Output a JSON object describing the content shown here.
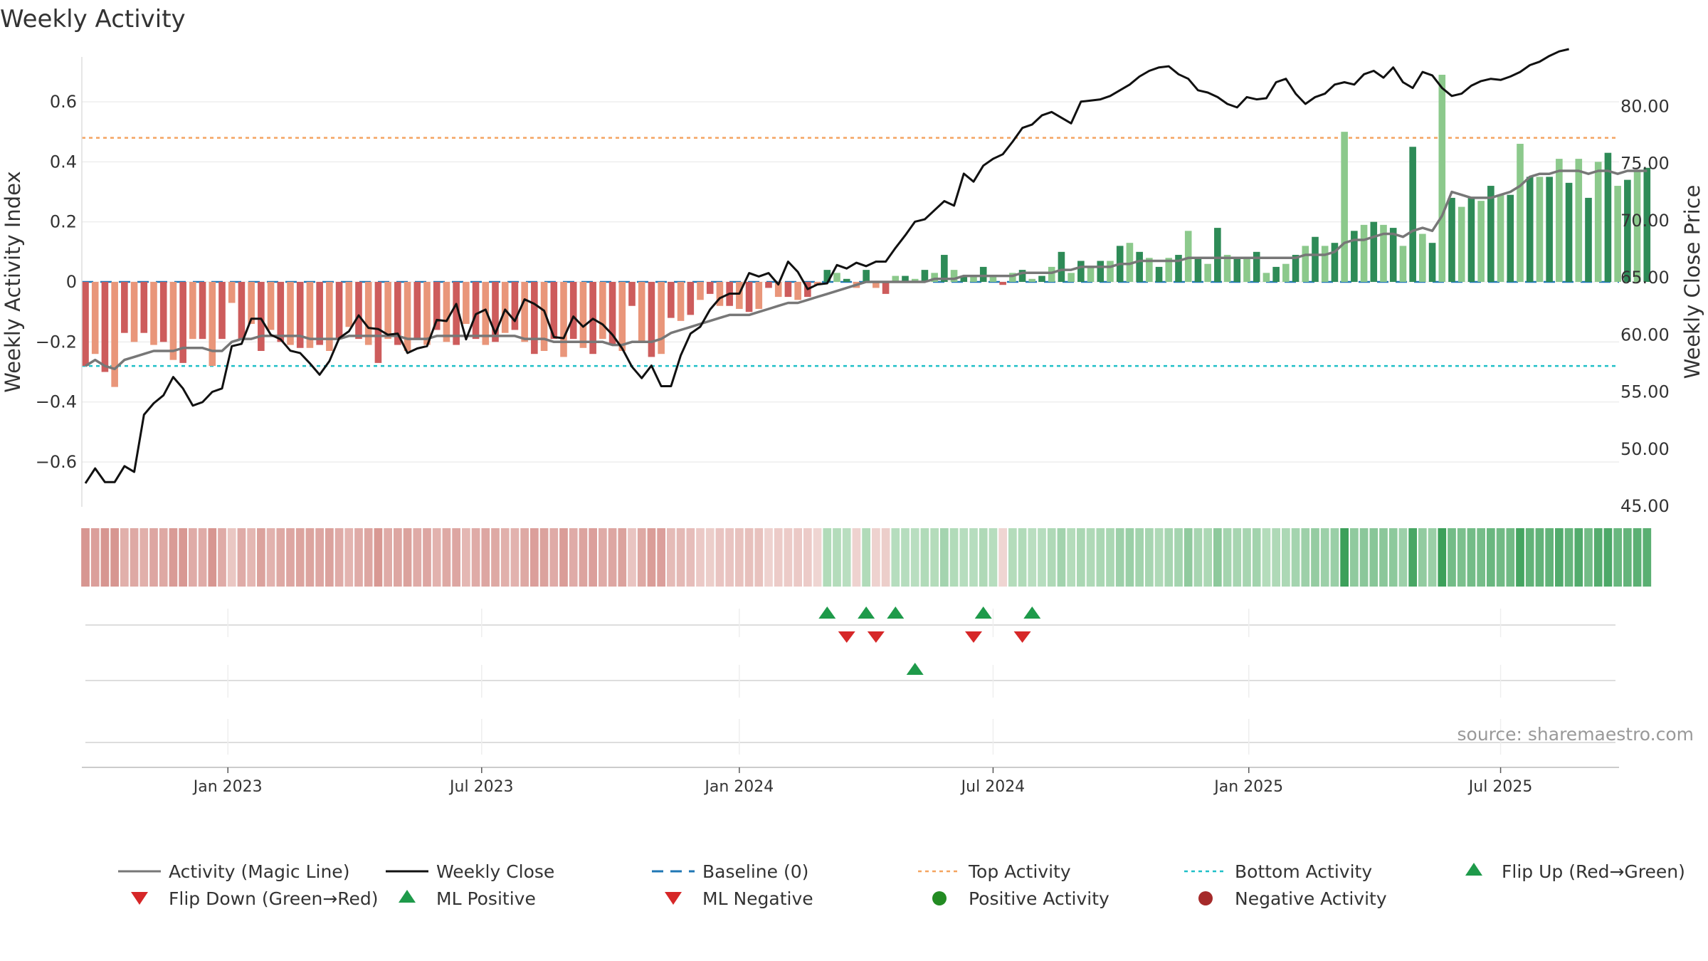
{
  "colors": {
    "pos_dark": "#2e8b57",
    "pos_light": "#8cc98c",
    "neg_dark": "#cd5c5c",
    "neg_light": "#e9967a",
    "magic": "#777777",
    "close": "#111111",
    "baseline": "#1f77b4",
    "top": "#f4a460",
    "bottom": "#20c0c8",
    "flip_up": "#1e9a4a",
    "flip_down": "#d62728",
    "pos_dot": "#228b22",
    "neg_dot": "#a52a2a"
  },
  "chart_data": {
    "type": "bar",
    "title": "Weekly Activity",
    "ylabel_left": "Weekly Activity Index",
    "ylabel_right": "Weekly Close Price",
    "ylim_left": [
      -0.75,
      0.75
    ],
    "ylim_right": [
      45,
      85
    ],
    "yticks_left": [
      -0.6,
      -0.4,
      -0.2,
      0,
      0.2,
      0.4,
      0.6
    ],
    "yticks_left_labels": [
      "−0.6",
      "−0.4",
      "−0.2",
      "0",
      "0.2",
      "0.4",
      "0.6"
    ],
    "yticks_right": [
      45,
      50,
      55,
      60,
      65,
      70,
      75,
      80
    ],
    "yticks_right_labels": [
      "45.00",
      "50.00",
      "55.00",
      "60.00",
      "65.00",
      "70.00",
      "75.00",
      "80.00"
    ],
    "xrange_weeks": [
      0,
      157
    ],
    "xticks": [
      {
        "week": 14.6,
        "label": "Jan 2023"
      },
      {
        "week": 40.6,
        "label": "Jul 2023"
      },
      {
        "week": 67,
        "label": "Jan 2024"
      },
      {
        "week": 93,
        "label": "Jul 2024"
      },
      {
        "week": 119.2,
        "label": "Jan 2025"
      },
      {
        "week": 145,
        "label": "Jul 2025"
      }
    ],
    "top_activity": 0.48,
    "bottom_activity": -0.28,
    "baseline": 0,
    "activity": [
      -0.28,
      -0.24,
      -0.3,
      -0.35,
      -0.17,
      -0.2,
      -0.17,
      -0.21,
      -0.2,
      -0.26,
      -0.27,
      -0.19,
      -0.19,
      -0.28,
      -0.19,
      -0.07,
      -0.19,
      -0.14,
      -0.23,
      -0.16,
      -0.2,
      -0.21,
      -0.22,
      -0.22,
      -0.21,
      -0.23,
      -0.19,
      -0.15,
      -0.19,
      -0.21,
      -0.27,
      -0.19,
      -0.21,
      -0.23,
      -0.19,
      -0.21,
      -0.16,
      -0.2,
      -0.21,
      -0.14,
      -0.19,
      -0.21,
      -0.2,
      -0.17,
      -0.16,
      -0.2,
      -0.24,
      -0.23,
      -0.19,
      -0.25,
      -0.19,
      -0.22,
      -0.24,
      -0.19,
      -0.21,
      -0.23,
      -0.08,
      -0.2,
      -0.25,
      -0.24,
      -0.12,
      -0.13,
      -0.11,
      -0.06,
      -0.04,
      -0.08,
      -0.08,
      -0.09,
      -0.1,
      -0.09,
      -0.02,
      -0.05,
      -0.05,
      -0.06,
      -0.05,
      -0.01,
      0.04,
      0.03,
      0.01,
      -0.02,
      0.04,
      -0.02,
      -0.04,
      0.02,
      0.02,
      0.01,
      0.04,
      0.03,
      0.09,
      0.04,
      0.02,
      0.02,
      0.05,
      0.02,
      -0.01,
      0.03,
      0.04,
      0.01,
      0.02,
      0.05,
      0.1,
      0.03,
      0.07,
      0.05,
      0.07,
      0.07,
      0.12,
      0.13,
      0.1,
      0.08,
      0.05,
      0.08,
      0.09,
      0.17,
      0.08,
      0.06,
      0.18,
      0.09,
      0.08,
      0.08,
      0.1,
      0.03,
      0.05,
      0.06,
      0.09,
      0.12,
      0.15,
      0.12,
      0.13,
      0.5,
      0.17,
      0.19,
      0.2,
      0.19,
      0.18,
      0.12,
      0.45,
      0.16,
      0.13,
      0.69,
      0.28,
      0.25,
      0.28,
      0.27,
      0.32,
      0.29,
      0.29,
      0.46,
      0.35,
      0.35,
      0.35,
      0.41,
      0.33,
      0.41,
      0.28,
      0.4,
      0.43,
      0.32,
      0.34,
      0.37,
      0.38
    ],
    "magic_line": [
      -0.28,
      -0.26,
      -0.28,
      -0.29,
      -0.26,
      -0.25,
      -0.24,
      -0.23,
      -0.23,
      -0.23,
      -0.22,
      -0.22,
      -0.22,
      -0.23,
      -0.23,
      -0.2,
      -0.19,
      -0.19,
      -0.18,
      -0.18,
      -0.18,
      -0.18,
      -0.18,
      -0.19,
      -0.19,
      -0.19,
      -0.19,
      -0.18,
      -0.18,
      -0.18,
      -0.18,
      -0.18,
      -0.18,
      -0.19,
      -0.19,
      -0.19,
      -0.18,
      -0.18,
      -0.18,
      -0.18,
      -0.18,
      -0.18,
      -0.18,
      -0.18,
      -0.18,
      -0.19,
      -0.19,
      -0.19,
      -0.2,
      -0.2,
      -0.2,
      -0.2,
      -0.2,
      -0.2,
      -0.21,
      -0.21,
      -0.2,
      -0.2,
      -0.2,
      -0.19,
      -0.17,
      -0.16,
      -0.15,
      -0.14,
      -0.13,
      -0.12,
      -0.11,
      -0.11,
      -0.11,
      -0.1,
      -0.09,
      -0.08,
      -0.07,
      -0.07,
      -0.06,
      -0.05,
      -0.04,
      -0.03,
      -0.02,
      -0.01,
      0,
      0,
      0,
      0,
      0,
      0,
      0,
      0.01,
      0.01,
      0.01,
      0.02,
      0.02,
      0.02,
      0.02,
      0.02,
      0.02,
      0.03,
      0.03,
      0.03,
      0.03,
      0.04,
      0.04,
      0.05,
      0.05,
      0.05,
      0.05,
      0.06,
      0.06,
      0.07,
      0.07,
      0.07,
      0.07,
      0.07,
      0.08,
      0.08,
      0.08,
      0.08,
      0.08,
      0.08,
      0.08,
      0.08,
      0.08,
      0.08,
      0.08,
      0.08,
      0.09,
      0.09,
      0.09,
      0.1,
      0.13,
      0.14,
      0.14,
      0.15,
      0.16,
      0.16,
      0.15,
      0.17,
      0.18,
      0.17,
      0.22,
      0.3,
      0.29,
      0.28,
      0.28,
      0.28,
      0.29,
      0.3,
      0.32,
      0.35,
      0.36,
      0.36,
      0.37,
      0.37,
      0.37,
      0.36,
      0.37,
      0.37,
      0.36,
      0.37,
      0.37,
      0.37
    ],
    "weekly_close": [
      47,
      48.3,
      47.1,
      47.1,
      48.5,
      48,
      53,
      54,
      54.7,
      56.3,
      55.3,
      53.8,
      54.1,
      55,
      55.3,
      59,
      59.2,
      61.4,
      61.4,
      60,
      59.6,
      58.6,
      58.4,
      57.5,
      56.5,
      57.7,
      59.7,
      60.3,
      61.7,
      60.6,
      60.5,
      60,
      60.1,
      58.4,
      58.8,
      59,
      61.3,
      61.2,
      62.7,
      59.6,
      61.8,
      62.2,
      60.1,
      62.2,
      61.2,
      63.1,
      62.7,
      62.1,
      59.8,
      59.7,
      61.6,
      60.7,
      61.4,
      60.9,
      60,
      58.8,
      57.2,
      56.2,
      57.3,
      55.5,
      55.5,
      58.2,
      60.1,
      60.7,
      62.2,
      63.2,
      63.6,
      63.6,
      65.4,
      65.1,
      65.4,
      64.4,
      66.4,
      65.5,
      64,
      64.4,
      64.5,
      66.1,
      65.8,
      66.3,
      66,
      66.4,
      66.4,
      67.6,
      68.7,
      69.9,
      70.1,
      70.9,
      71.7,
      71.3,
      74.1,
      73.4,
      74.8,
      75.4,
      75.8,
      76.9,
      78.1,
      78.4,
      79.2,
      79.5,
      79,
      78.5,
      80.4,
      80.5,
      80.6,
      80.9,
      81.4,
      81.9,
      82.6,
      83.1,
      83.4,
      83.5,
      82.8,
      82.4,
      81.4,
      81.2,
      80.8,
      80.2,
      79.9,
      80.8,
      80.6,
      80.7,
      82.1,
      82.4,
      81.1,
      80.2,
      80.8,
      81.1,
      81.9,
      82.1,
      81.9,
      82.8,
      83.1,
      82.5,
      83.4,
      82.1,
      81.6,
      83,
      82.7,
      81.6,
      80.9,
      81.1,
      81.8,
      82.2,
      82.4,
      82.3,
      82.6,
      83,
      83.6,
      83.9,
      84.4,
      84.8,
      85
    ],
    "series_labels": {
      "magic": "Activity (Magic Line)",
      "close": "Weekly Close",
      "baseline": "Baseline (0)",
      "top": "Top Activity",
      "bottom": "Bottom Activity",
      "flip_up": "Flip Up (Red→Green)",
      "flip_down": "Flip Down (Green→Red)",
      "ml_pos": "ML Positive",
      "ml_neg": "ML Negative",
      "pos_act": "Positive Activity",
      "neg_act": "Negative Activity"
    },
    "flip_up_weeks": [
      76,
      80,
      83,
      92,
      97
    ],
    "flip_down_weeks": [
      78,
      81,
      91,
      96
    ],
    "ml_positive_weeks": [
      85
    ],
    "ml_negative_weeks": []
  },
  "source": "source: sharemaestro.com"
}
